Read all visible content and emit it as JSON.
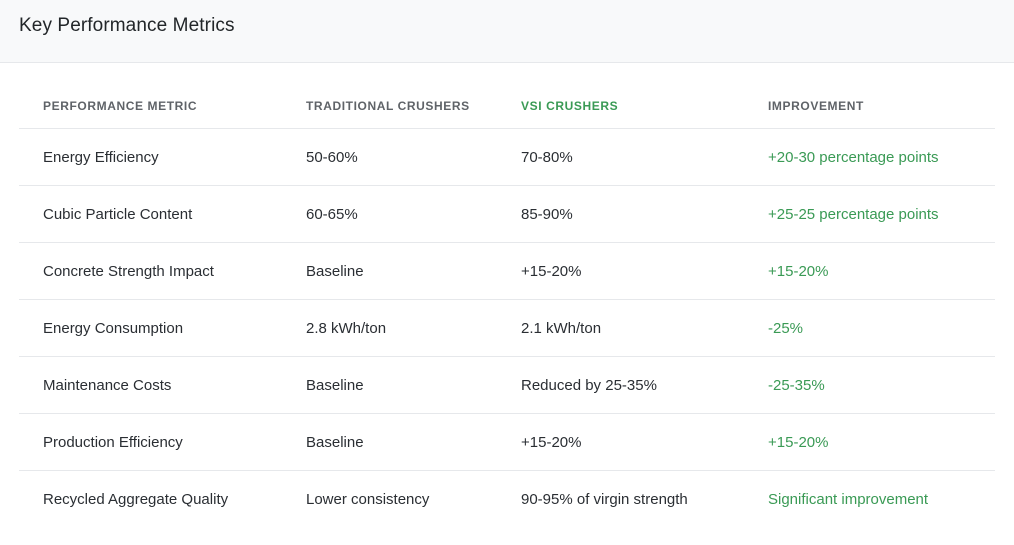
{
  "header": {
    "title": "Key Performance Metrics"
  },
  "table": {
    "columns": [
      "PERFORMANCE METRIC",
      "TRADITIONAL CRUSHERS",
      "VSI CRUSHERS",
      "IMPROVEMENT"
    ],
    "rows": [
      [
        "Energy Efficiency",
        "50-60%",
        "70-80%",
        "+20-30 percentage points"
      ],
      [
        "Cubic Particle Content",
        "60-65%",
        "85-90%",
        "+25-25 percentage points"
      ],
      [
        "Concrete Strength Impact",
        "Baseline",
        "+15-20%",
        "+15-20%"
      ],
      [
        "Energy Consumption",
        "2.8 kWh/ton",
        "2.1 kWh/ton",
        "-25%"
      ],
      [
        "Maintenance Costs",
        "Baseline",
        "Reduced by 25-35%",
        "-25-35%"
      ],
      [
        "Production Efficiency",
        "Baseline",
        "+15-20%",
        "+15-20%"
      ],
      [
        "Recycled Aggregate Quality",
        "Lower consistency",
        "90-95% of virgin strength",
        "Significant improvement"
      ]
    ]
  },
  "colors": {
    "accent_green": "#3a9a55",
    "header_bg": "#f8f9fa",
    "border": "#e6e8eb"
  }
}
